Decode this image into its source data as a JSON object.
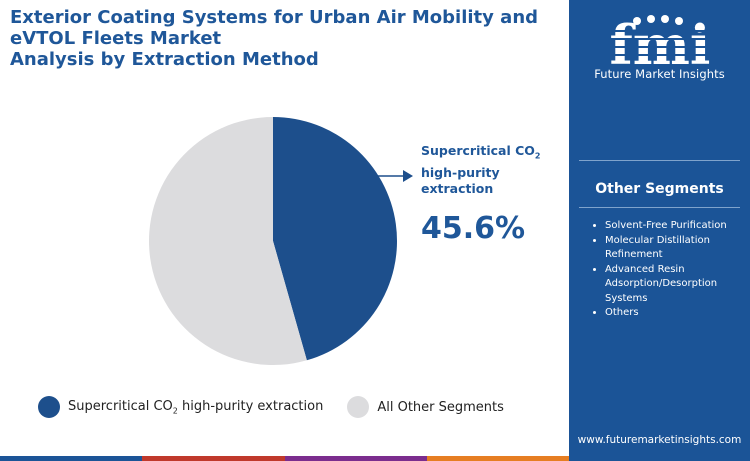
{
  "title": {
    "line1": "Exterior Coating Systems for Urban Air Mobility and",
    "line2": "eVTOL Fleets Market",
    "line3": "Analysis by Extraction Method"
  },
  "brand": {
    "logo_text": "fmi",
    "caption": "Future Market Insights",
    "url": "www.futuremarketinsights.com"
  },
  "sidebar": {
    "heading": "Other Segments",
    "items": [
      "Solvent-Free Purification",
      "Molecular Distillation Refinement",
      "Advanced Resin Adsorption/Desorption Systems",
      "Others"
    ]
  },
  "callout": {
    "label_prefix": "Supercritical CO",
    "label_sub": "2",
    "label_rest": "high-purity extraction",
    "percent_text": "45.6%"
  },
  "legend": {
    "item1_prefix": "Supercritical CO",
    "item1_sub": "2",
    "item1_rest": " high-purity extraction",
    "item2": "All Other Segments"
  },
  "colors": {
    "primary": "#1d4f8c",
    "other": "#dcdcde",
    "title": "#1f5799",
    "sidebar_bg": "#1b5497",
    "bar": [
      "#1b5497",
      "#c0392b",
      "#7b2d8e",
      "#e67e22"
    ]
  },
  "chart_data": {
    "type": "pie",
    "title": "Exterior Coating Systems for Urban Air Mobility and eVTOL Fleets Market Analysis by Extraction Method",
    "slices": [
      {
        "name": "Supercritical CO2 high-purity extraction",
        "value": 45.6
      },
      {
        "name": "All Other Segments",
        "value": 54.4
      }
    ],
    "legend_position": "bottom"
  }
}
